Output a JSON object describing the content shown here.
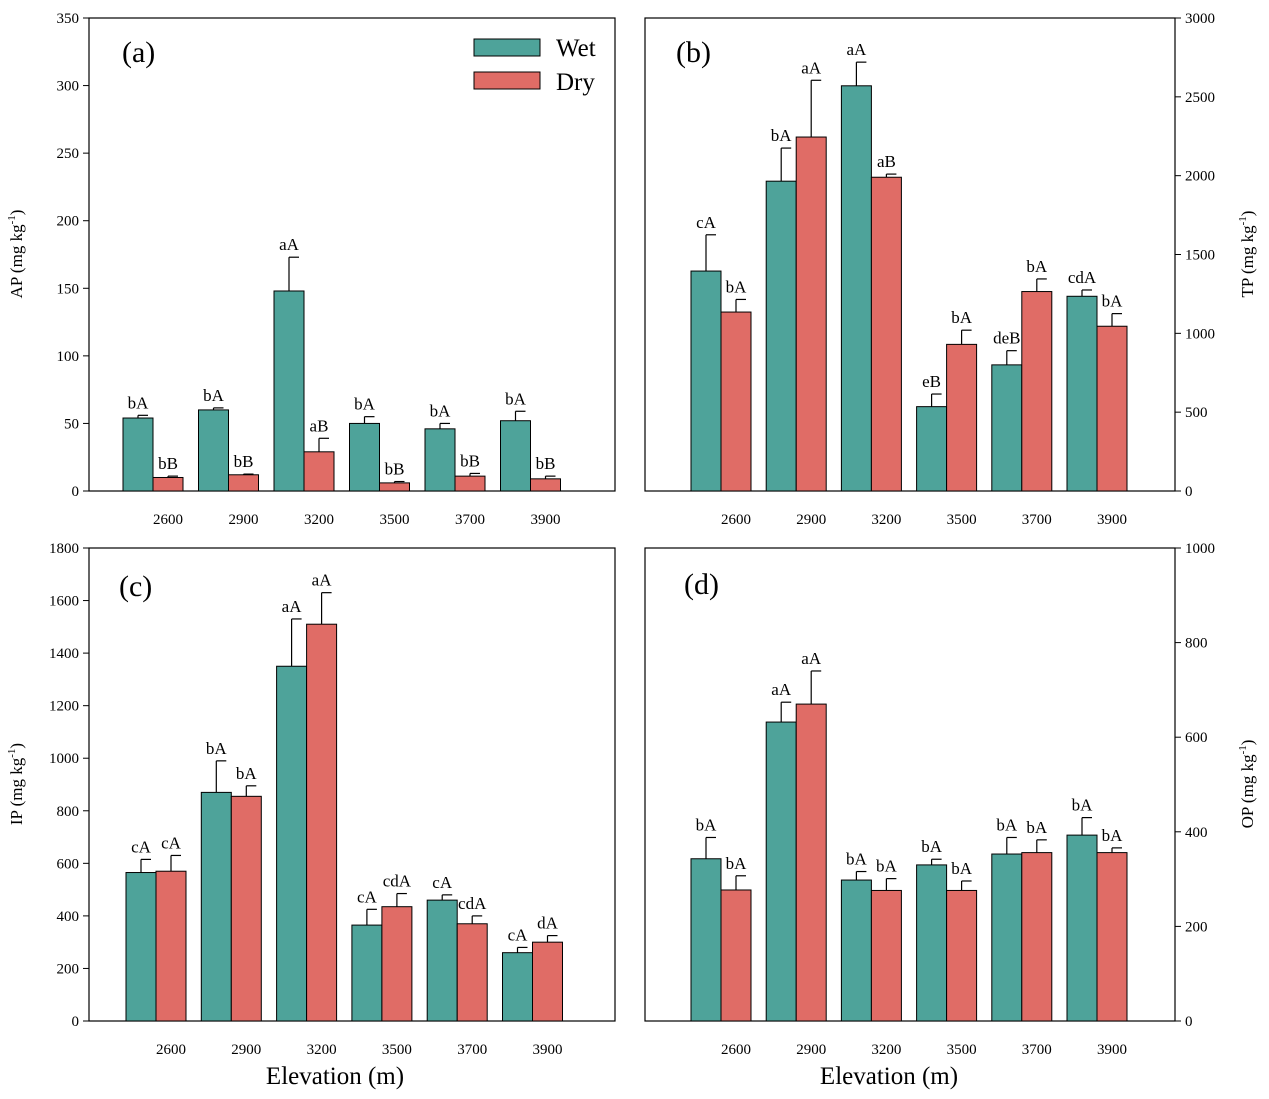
{
  "colors": {
    "wet": "#4ea39a",
    "dry": "#e06c66"
  },
  "legend": {
    "wet": "Wet",
    "dry": "Dry"
  },
  "xlabel": "Elevation (m)",
  "chart_data": [
    {
      "type": "bar",
      "panel": "(a)",
      "ylabel": "AP (mg kg-1)",
      "ylabel_main": "AP (mg kg",
      "ylabel_sup": "-1",
      "ylabel_end": ")",
      "axis_side": "left",
      "ylim": [
        0,
        350
      ],
      "yticks": [
        0,
        50,
        100,
        150,
        200,
        250,
        300,
        350
      ],
      "categories": [
        "2600",
        "2900",
        "3200",
        "3500",
        "3700",
        "3900"
      ],
      "series": [
        {
          "name": "Wet",
          "values": [
            54,
            60,
            148,
            50,
            46,
            52
          ],
          "errors": [
            2,
            1.5,
            25,
            5,
            4,
            7
          ],
          "labels": [
            "bA",
            "bA",
            "aA",
            "bA",
            "bA",
            "bA"
          ]
        },
        {
          "name": "Dry",
          "values": [
            10,
            12,
            29,
            6,
            11,
            9
          ],
          "errors": [
            1,
            0.5,
            10,
            1,
            2,
            2
          ],
          "labels": [
            "bB",
            "bB",
            "aB",
            "bB",
            "bB",
            "bB"
          ]
        }
      ]
    },
    {
      "type": "bar",
      "panel": "(b)",
      "ylabel": "TP (mg kg-1)",
      "ylabel_main": "TP (mg kg",
      "ylabel_sup": "-1",
      "ylabel_end": ")",
      "axis_side": "right",
      "ylim": [
        0,
        3000
      ],
      "yticks": [
        0,
        500,
        1000,
        1500,
        2000,
        2500,
        3000
      ],
      "categories": [
        "2600",
        "2900",
        "3200",
        "3500",
        "3700",
        "3900"
      ],
      "series": [
        {
          "name": "Wet",
          "values": [
            1395,
            1965,
            2570,
            535,
            800,
            1235
          ],
          "errors": [
            230,
            210,
            150,
            80,
            90,
            40
          ],
          "labels": [
            "cA",
            "bA",
            "aA",
            "eB",
            "deB",
            "cdA"
          ]
        },
        {
          "name": "Dry",
          "values": [
            1135,
            2245,
            1990,
            930,
            1265,
            1045
          ],
          "errors": [
            80,
            360,
            20,
            90,
            80,
            80
          ],
          "labels": [
            "bA",
            "aA",
            "aB",
            "bA",
            "bA",
            "bA"
          ]
        }
      ]
    },
    {
      "type": "bar",
      "panel": "(c)",
      "ylabel": "IP (mg kg-1)",
      "ylabel_main": "IP (mg kg",
      "ylabel_sup": "-1",
      "ylabel_end": ")",
      "axis_side": "left",
      "ylim": [
        0,
        1800
      ],
      "yticks": [
        0,
        200,
        400,
        600,
        800,
        1000,
        1200,
        1400,
        1600,
        1800
      ],
      "categories": [
        "2600",
        "2900",
        "3200",
        "3500",
        "3700",
        "3900"
      ],
      "series": [
        {
          "name": "Wet",
          "values": [
            565,
            870,
            1350,
            365,
            460,
            260
          ],
          "errors": [
            50,
            120,
            180,
            60,
            20,
            20
          ],
          "labels": [
            "cA",
            "bA",
            "aA",
            "cA",
            "cA",
            "cA"
          ]
        },
        {
          "name": "Dry",
          "values": [
            570,
            855,
            1510,
            435,
            370,
            300
          ],
          "errors": [
            60,
            40,
            120,
            50,
            30,
            25
          ],
          "labels": [
            "cA",
            "bA",
            "aA",
            "cdA",
            "cdA",
            "dA"
          ]
        }
      ]
    },
    {
      "type": "bar",
      "panel": "(d)",
      "ylabel": "OP (mg kg-1)",
      "ylabel_main": "OP (mg kg",
      "ylabel_sup": "-1",
      "ylabel_end": ")",
      "axis_side": "right",
      "ylim": [
        0,
        1000
      ],
      "yticks": [
        0,
        200,
        400,
        600,
        800,
        1000
      ],
      "categories": [
        "2600",
        "2900",
        "3200",
        "3500",
        "3700",
        "3900"
      ],
      "series": [
        {
          "name": "Wet",
          "values": [
            343,
            632,
            298,
            330,
            353,
            393
          ],
          "errors": [
            45,
            42,
            18,
            12,
            35,
            37
          ],
          "labels": [
            "bA",
            "aA",
            "bA",
            "bA",
            "bA",
            "bA"
          ]
        },
        {
          "name": "Dry",
          "values": [
            277,
            670,
            276,
            276,
            356,
            356
          ],
          "errors": [
            30,
            70,
            25,
            20,
            27,
            10
          ],
          "labels": [
            "bA",
            "aA",
            "bA",
            "bA",
            "bA",
            "bA"
          ]
        }
      ]
    }
  ]
}
